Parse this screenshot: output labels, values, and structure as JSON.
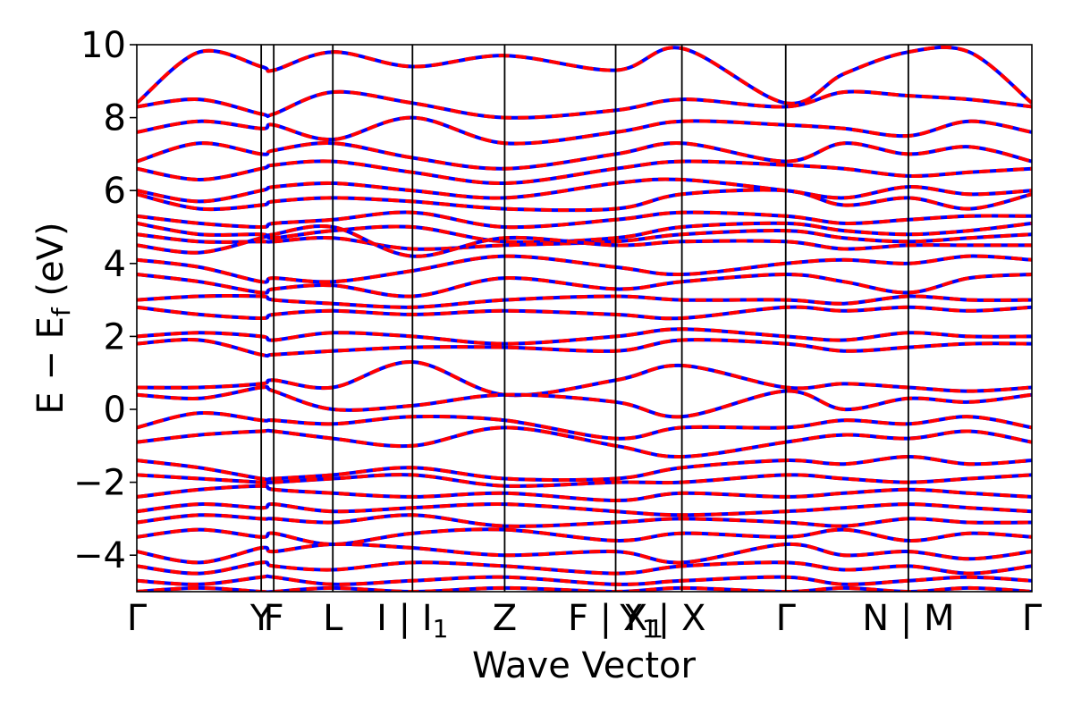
{
  "chart_data": {
    "type": "line",
    "title": "",
    "xlabel": "Wave Vector",
    "ylabel": "E − E",
    "ylabel_subscript": "f",
    "ylabel_suffix": " (eV)",
    "ylim": [
      -5,
      10
    ],
    "yticks": [
      -4,
      -2,
      0,
      2,
      4,
      6,
      8,
      10
    ],
    "ytick_labels": [
      "−4",
      "−2",
      "0",
      "2",
      "4",
      "6",
      "8",
      "10"
    ],
    "grid": false,
    "legend": "none",
    "x_range": [
      0,
      1
    ],
    "kpath": [
      {
        "pos": 0.0,
        "label": "Γ",
        "line": false
      },
      {
        "pos": 0.139,
        "label": "Y",
        "line": true
      },
      {
        "pos": 0.153,
        "label": "F",
        "line": true
      },
      {
        "pos": 0.219,
        "label": "L",
        "line": true
      },
      {
        "pos": 0.308,
        "label": "I | I",
        "sub": "1",
        "line": true
      },
      {
        "pos": 0.411,
        "label": "Z",
        "line": true
      },
      {
        "pos": 0.535,
        "label": "F | X",
        "sub": "1",
        "line": true
      },
      {
        "pos": 0.561,
        "label": "Y",
        "sub": "1",
        "line": false
      },
      {
        "pos": 0.609,
        "label": "| X",
        "line": true
      },
      {
        "pos": 0.725,
        "label": "Γ",
        "line": true
      },
      {
        "pos": 0.862,
        "label": "N | M",
        "line": true
      },
      {
        "pos": 1.0,
        "label": "Γ",
        "line": false
      }
    ],
    "series_style": [
      {
        "color": "#0000ff",
        "width": 4,
        "dash": "none"
      },
      {
        "color": "#ff0000",
        "width": 4,
        "dash": "12,7"
      }
    ],
    "bands": [
      {
        "x": [
          0,
          0.07,
          0.139,
          0.153,
          0.219,
          0.308,
          0.411,
          0.535,
          0.609,
          0.725,
          0.79,
          0.862,
          0.93,
          1.0
        ],
        "y": [
          8.4,
          9.8,
          9.4,
          9.3,
          9.8,
          9.4,
          9.7,
          9.3,
          9.9,
          8.4,
          9.2,
          9.8,
          9.8,
          8.4
        ]
      },
      {
        "x": [
          0,
          0.07,
          0.139,
          0.153,
          0.219,
          0.308,
          0.411,
          0.535,
          0.609,
          0.725,
          0.79,
          0.862,
          0.93,
          1.0
        ],
        "y": [
          8.3,
          8.5,
          8.1,
          8.1,
          8.7,
          8.4,
          8.0,
          8.2,
          8.5,
          8.3,
          8.7,
          8.6,
          8.5,
          8.3
        ]
      },
      {
        "x": [
          0,
          0.07,
          0.139,
          0.153,
          0.219,
          0.308,
          0.411,
          0.535,
          0.609,
          0.725,
          0.79,
          0.862,
          0.93,
          1.0
        ],
        "y": [
          7.6,
          7.9,
          7.7,
          7.8,
          7.4,
          8.0,
          7.3,
          7.6,
          7.9,
          7.8,
          7.7,
          7.5,
          7.9,
          7.6
        ]
      },
      {
        "x": [
          0,
          0.07,
          0.139,
          0.153,
          0.219,
          0.308,
          0.411,
          0.535,
          0.609,
          0.725,
          0.79,
          0.862,
          0.93,
          1.0
        ],
        "y": [
          6.8,
          7.3,
          7.0,
          7.1,
          7.3,
          6.9,
          6.6,
          7.0,
          7.3,
          6.8,
          7.3,
          7.0,
          7.2,
          6.8
        ]
      },
      {
        "x": [
          0,
          0.07,
          0.139,
          0.153,
          0.219,
          0.308,
          0.411,
          0.535,
          0.609,
          0.725,
          0.79,
          0.862,
          0.93,
          1.0
        ],
        "y": [
          6.6,
          6.3,
          6.6,
          6.7,
          6.8,
          6.5,
          6.2,
          6.6,
          6.8,
          6.7,
          6.6,
          6.4,
          6.5,
          6.6
        ]
      },
      {
        "x": [
          0,
          0.07,
          0.139,
          0.153,
          0.219,
          0.308,
          0.411,
          0.535,
          0.609,
          0.725,
          0.79,
          0.862,
          0.93,
          1.0
        ],
        "y": [
          6.0,
          5.7,
          6.0,
          6.1,
          6.2,
          6.0,
          5.8,
          6.2,
          6.3,
          6.0,
          5.8,
          6.1,
          5.9,
          6.0
        ]
      },
      {
        "x": [
          0,
          0.07,
          0.139,
          0.153,
          0.219,
          0.308,
          0.411,
          0.535,
          0.609,
          0.725,
          0.79,
          0.862,
          0.93,
          1.0
        ],
        "y": [
          5.9,
          5.5,
          5.6,
          5.7,
          5.8,
          5.7,
          5.5,
          5.5,
          5.9,
          6.0,
          5.6,
          5.8,
          5.5,
          5.9
        ]
      },
      {
        "x": [
          0,
          0.07,
          0.139,
          0.153,
          0.219,
          0.308,
          0.411,
          0.535,
          0.609,
          0.725,
          0.79,
          0.862,
          0.93,
          1.0
        ],
        "y": [
          5.3,
          5.1,
          5.0,
          5.1,
          5.2,
          5.4,
          5.0,
          5.2,
          5.4,
          5.3,
          5.1,
          5.2,
          5.3,
          5.3
        ]
      },
      {
        "x": [
          0,
          0.07,
          0.139,
          0.153,
          0.219,
          0.308,
          0.411,
          0.535,
          0.609,
          0.725,
          0.79,
          0.862,
          0.93,
          1.0
        ],
        "y": [
          5.1,
          4.8,
          4.8,
          4.7,
          4.9,
          5.0,
          4.6,
          4.7,
          5.0,
          5.1,
          4.9,
          4.8,
          4.9,
          5.1
        ]
      },
      {
        "x": [
          0,
          0.07,
          0.139,
          0.153,
          0.219,
          0.308,
          0.411,
          0.535,
          0.609,
          0.725,
          0.79,
          0.862,
          0.93,
          1.0
        ],
        "y": [
          4.8,
          4.6,
          4.6,
          4.6,
          4.7,
          4.4,
          4.5,
          4.6,
          4.8,
          4.9,
          4.7,
          4.6,
          4.7,
          4.8
        ]
      },
      {
        "x": [
          0,
          0.07,
          0.139,
          0.153,
          0.219,
          0.308,
          0.411,
          0.535,
          0.609,
          0.725,
          0.79,
          0.862,
          0.93,
          1.0
        ],
        "y": [
          4.5,
          4.3,
          4.7,
          4.8,
          5.0,
          4.2,
          4.7,
          4.5,
          4.6,
          4.6,
          4.4,
          4.5,
          4.5,
          4.5
        ]
      },
      {
        "x": [
          0,
          0.07,
          0.139,
          0.153,
          0.219,
          0.308,
          0.411,
          0.535,
          0.609,
          0.725,
          0.79,
          0.862,
          0.93,
          1.0
        ],
        "y": [
          4.1,
          3.9,
          3.5,
          3.6,
          3.5,
          3.8,
          4.2,
          3.9,
          3.7,
          4.0,
          4.1,
          4.0,
          4.2,
          4.1
        ]
      },
      {
        "x": [
          0,
          0.07,
          0.139,
          0.153,
          0.219,
          0.308,
          0.411,
          0.535,
          0.609,
          0.725,
          0.79,
          0.862,
          0.93,
          1.0
        ],
        "y": [
          3.7,
          3.5,
          3.2,
          3.3,
          3.4,
          3.1,
          3.6,
          3.3,
          3.5,
          3.7,
          3.5,
          3.2,
          3.6,
          3.7
        ]
      },
      {
        "x": [
          0,
          0.07,
          0.139,
          0.153,
          0.219,
          0.308,
          0.411,
          0.535,
          0.609,
          0.725,
          0.79,
          0.862,
          0.93,
          1.0
        ],
        "y": [
          3.0,
          3.1,
          3.1,
          3.0,
          2.9,
          2.8,
          3.0,
          3.1,
          3.0,
          3.0,
          2.9,
          3.1,
          3.0,
          3.0
        ]
      },
      {
        "x": [
          0,
          0.07,
          0.139,
          0.153,
          0.219,
          0.308,
          0.411,
          0.535,
          0.609,
          0.725,
          0.79,
          0.862,
          0.93,
          1.0
        ],
        "y": [
          2.8,
          2.6,
          2.5,
          2.6,
          2.7,
          2.6,
          2.7,
          2.6,
          2.5,
          2.8,
          2.7,
          2.8,
          2.7,
          2.8
        ]
      },
      {
        "x": [
          0,
          0.07,
          0.139,
          0.153,
          0.219,
          0.308,
          0.411,
          0.535,
          0.609,
          0.725,
          0.79,
          0.862,
          0.93,
          1.0
        ],
        "y": [
          2.0,
          2.1,
          2.0,
          1.9,
          2.1,
          2.0,
          1.8,
          2.0,
          2.2,
          2.0,
          1.9,
          2.1,
          2.0,
          2.0
        ]
      },
      {
        "x": [
          0,
          0.07,
          0.139,
          0.153,
          0.219,
          0.308,
          0.411,
          0.535,
          0.609,
          0.725,
          0.79,
          0.862,
          0.93,
          1.0
        ],
        "y": [
          1.8,
          1.9,
          1.5,
          1.5,
          1.6,
          1.7,
          1.7,
          1.6,
          1.9,
          1.8,
          1.6,
          1.7,
          1.8,
          1.8
        ]
      },
      {
        "x": [
          0,
          0.07,
          0.139,
          0.153,
          0.219,
          0.308,
          0.411,
          0.535,
          0.609,
          0.725,
          0.79,
          0.862,
          0.93,
          1.0
        ],
        "y": [
          0.6,
          0.6,
          0.7,
          0.8,
          0.6,
          1.3,
          0.4,
          0.8,
          1.2,
          0.6,
          0.7,
          0.6,
          0.5,
          0.6
        ]
      },
      {
        "x": [
          0,
          0.07,
          0.139,
          0.153,
          0.219,
          0.308,
          0.411,
          0.535,
          0.609,
          0.725,
          0.79,
          0.862,
          0.93,
          1.0
        ],
        "y": [
          0.4,
          0.3,
          0.6,
          0.5,
          0.0,
          0.1,
          0.4,
          0.2,
          -0.2,
          0.5,
          0.0,
          0.3,
          0.2,
          0.4
        ]
      },
      {
        "x": [
          0,
          0.07,
          0.139,
          0.153,
          0.219,
          0.308,
          0.411,
          0.535,
          0.609,
          0.725,
          0.79,
          0.862,
          0.93,
          1.0
        ],
        "y": [
          -0.5,
          -0.1,
          -0.3,
          -0.3,
          -0.4,
          -0.2,
          -0.3,
          -0.8,
          -0.5,
          -0.5,
          -0.3,
          -0.4,
          -0.2,
          -0.5
        ]
      },
      {
        "x": [
          0,
          0.07,
          0.139,
          0.153,
          0.219,
          0.308,
          0.411,
          0.535,
          0.609,
          0.725,
          0.79,
          0.862,
          0.93,
          1.0
        ],
        "y": [
          -0.9,
          -0.7,
          -0.6,
          -0.6,
          -0.8,
          -1.0,
          -0.5,
          -1.0,
          -1.3,
          -0.9,
          -0.7,
          -0.8,
          -0.6,
          -0.9
        ]
      },
      {
        "x": [
          0,
          0.07,
          0.139,
          0.153,
          0.219,
          0.308,
          0.411,
          0.535,
          0.609,
          0.725,
          0.79,
          0.862,
          0.93,
          1.0
        ],
        "y": [
          -1.4,
          -1.6,
          -1.9,
          -1.9,
          -1.8,
          -1.6,
          -1.9,
          -1.9,
          -1.6,
          -1.4,
          -1.5,
          -1.3,
          -1.5,
          -1.4
        ]
      },
      {
        "x": [
          0,
          0.07,
          0.139,
          0.153,
          0.219,
          0.308,
          0.411,
          0.535,
          0.609,
          0.725,
          0.79,
          0.862,
          0.93,
          1.0
        ],
        "y": [
          -1.8,
          -1.9,
          -2.0,
          -2.0,
          -1.9,
          -1.8,
          -2.1,
          -2.0,
          -2.0,
          -1.8,
          -1.9,
          -2.0,
          -1.9,
          -1.8
        ]
      },
      {
        "x": [
          0,
          0.07,
          0.139,
          0.153,
          0.219,
          0.308,
          0.411,
          0.535,
          0.609,
          0.725,
          0.79,
          0.862,
          0.93,
          1.0
        ],
        "y": [
          -2.4,
          -2.2,
          -2.1,
          -2.2,
          -2.3,
          -2.4,
          -2.3,
          -2.5,
          -2.3,
          -2.4,
          -2.3,
          -2.2,
          -2.3,
          -2.4
        ]
      },
      {
        "x": [
          0,
          0.07,
          0.139,
          0.153,
          0.219,
          0.308,
          0.411,
          0.535,
          0.609,
          0.725,
          0.79,
          0.862,
          0.93,
          1.0
        ],
        "y": [
          -2.8,
          -2.6,
          -2.7,
          -2.6,
          -2.8,
          -2.7,
          -2.6,
          -2.8,
          -2.9,
          -2.8,
          -2.7,
          -2.6,
          -2.7,
          -2.8
        ]
      },
      {
        "x": [
          0,
          0.07,
          0.139,
          0.153,
          0.219,
          0.308,
          0.411,
          0.535,
          0.609,
          0.725,
          0.79,
          0.862,
          0.93,
          1.0
        ],
        "y": [
          -3.1,
          -2.9,
          -3.0,
          -3.0,
          -3.1,
          -2.9,
          -3.2,
          -3.1,
          -3.0,
          -3.1,
          -3.2,
          -3.0,
          -3.1,
          -3.1
        ]
      },
      {
        "x": [
          0,
          0.07,
          0.139,
          0.153,
          0.219,
          0.308,
          0.411,
          0.535,
          0.609,
          0.725,
          0.79,
          0.862,
          0.93,
          1.0
        ],
        "y": [
          -3.5,
          -3.3,
          -3.5,
          -3.4,
          -3.7,
          -3.4,
          -3.3,
          -3.6,
          -3.4,
          -3.5,
          -3.3,
          -3.6,
          -3.4,
          -3.5
        ]
      },
      {
        "x": [
          0,
          0.07,
          0.139,
          0.153,
          0.219,
          0.308,
          0.411,
          0.535,
          0.609,
          0.725,
          0.79,
          0.862,
          0.93,
          1.0
        ],
        "y": [
          -3.9,
          -4.2,
          -3.8,
          -3.9,
          -3.7,
          -3.8,
          -4.0,
          -3.9,
          -4.2,
          -3.7,
          -4.0,
          -3.9,
          -4.1,
          -3.9
        ]
      },
      {
        "x": [
          0,
          0.07,
          0.139,
          0.153,
          0.219,
          0.308,
          0.411,
          0.535,
          0.609,
          0.725,
          0.79,
          0.862,
          0.93,
          1.0
        ],
        "y": [
          -4.3,
          -4.5,
          -4.2,
          -4.3,
          -4.4,
          -4.2,
          -4.3,
          -4.5,
          -4.3,
          -4.2,
          -4.4,
          -4.3,
          -4.5,
          -4.3
        ]
      },
      {
        "x": [
          0,
          0.07,
          0.139,
          0.153,
          0.219,
          0.308,
          0.411,
          0.535,
          0.609,
          0.725,
          0.79,
          0.862,
          0.93,
          1.0
        ],
        "y": [
          -4.7,
          -4.8,
          -4.6,
          -4.6,
          -4.8,
          -4.7,
          -4.6,
          -4.8,
          -4.7,
          -4.6,
          -4.8,
          -4.7,
          -4.6,
          -4.7
        ]
      },
      {
        "x": [
          0,
          0.07,
          0.139,
          0.153,
          0.219,
          0.308,
          0.411,
          0.535,
          0.609,
          0.725,
          0.79,
          0.862,
          0.93,
          1.0
        ],
        "y": [
          -5.0,
          -4.9,
          -5.0,
          -5.0,
          -4.9,
          -5.0,
          -4.9,
          -5.0,
          -4.9,
          -5.0,
          -4.9,
          -5.0,
          -4.9,
          -5.0
        ]
      }
    ]
  }
}
